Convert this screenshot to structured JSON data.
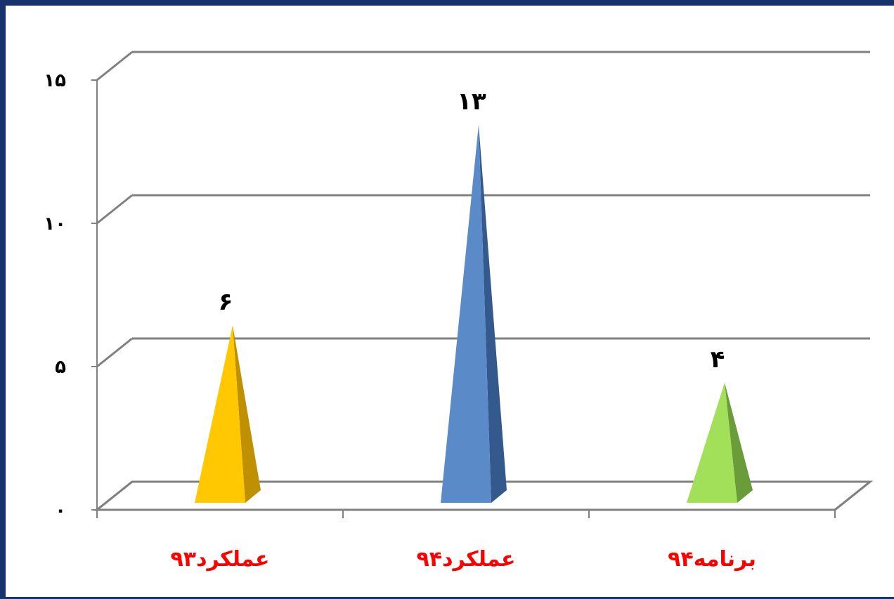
{
  "chart_data": {
    "type": "bar",
    "bar_shape": "pyramid-3d",
    "categories": [
      "عملکرد۹۳",
      "عملکرد۹۴",
      "برنامه۹۴"
    ],
    "values": [
      6,
      13,
      4
    ],
    "value_labels": [
      "۶",
      "۱۳",
      "۴"
    ],
    "ylim": [
      0,
      15
    ],
    "yticks": [
      0,
      5,
      10,
      15
    ],
    "ytick_labels": [
      "۰",
      "۵",
      "۱۰",
      "۱۵"
    ],
    "grid": true,
    "legend": "none",
    "bar_colors": [
      {
        "face": "#ffc800",
        "side": "#bf9000"
      },
      {
        "face": "#5a8ac8",
        "side": "#34598c"
      },
      {
        "face": "#a2e05a",
        "side": "#6a9c3a"
      }
    ],
    "category_label_color": "#ff0000"
  }
}
